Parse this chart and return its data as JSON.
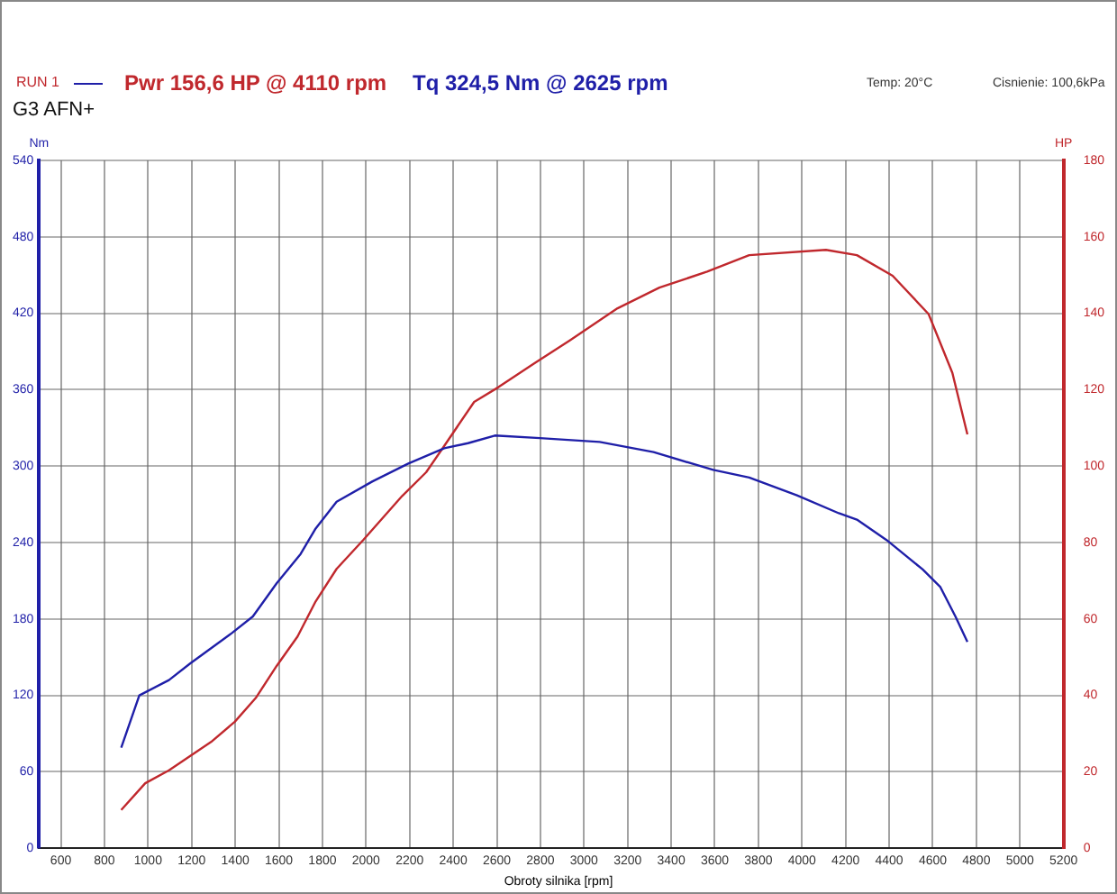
{
  "chart_data": {
    "type": "line",
    "title": "G3 AFN+",
    "annotations": [
      "RUN 1",
      "Pwr 156,6 HP @ 4110 rpm",
      "Tq 324,5 Nm @ 2625 rpm",
      "Temp: 20°C",
      "Cisnienie: 100,6kPa"
    ],
    "xlabel": "Obroty silnika [rpm]",
    "ylabel": "Nm",
    "y2label": "HP",
    "series": [
      {
        "color": "#1f1fa8",
        "x": [
          877,
          960,
          1096,
          1193,
          1385,
          1481,
          1590,
          1700,
          1769,
          1865,
          2030,
          2194,
          2359,
          2468,
          2591,
          2798,
          3072,
          3319,
          3593,
          3758,
          3977,
          4169,
          4252,
          4388,
          4553,
          4635,
          4704,
          4759
        ],
        "values": [
          79,
          120,
          132,
          145,
          169,
          182,
          208,
          231,
          251,
          272,
          288,
          302,
          314,
          318,
          324,
          322,
          319,
          311,
          297,
          291,
          277,
          263,
          258,
          242,
          219,
          205,
          182,
          162
        ]
      },
      {
        "color": "#c0282d",
        "axis": "y2",
        "x": [
          877,
          987,
          1096,
          1289,
          1398,
          1494,
          1590,
          1686,
          1769,
          1865,
          1988,
          2166,
          2276,
          2359,
          2496,
          2606,
          2770,
          2935,
          3154,
          3346,
          3565,
          3758,
          4110,
          4252,
          4416,
          4581,
          4690,
          4759
        ],
        "values": [
          10,
          17,
          20.4,
          27.8,
          33.1,
          39.3,
          47.7,
          55.4,
          64.6,
          73.1,
          80.7,
          92.2,
          98.4,
          105.3,
          116.8,
          120.6,
          126.8,
          132.9,
          141.3,
          146.7,
          150.9,
          155.2,
          156.6,
          155.2,
          149.8,
          139.8,
          124.4,
          108.3
        ]
      }
    ],
    "xlim": [
      500,
      5200
    ],
    "xticks": [
      600,
      800,
      1000,
      1200,
      1400,
      1600,
      1800,
      2000,
      2200,
      2400,
      2600,
      2800,
      3000,
      3200,
      3400,
      3600,
      3800,
      4000,
      4200,
      4400,
      4600,
      4800,
      5000,
      5200
    ],
    "ylim": [
      0,
      540
    ],
    "yticks": [
      0,
      60,
      120,
      180,
      240,
      300,
      360,
      420,
      480,
      540
    ],
    "y2lim": [
      0,
      180
    ],
    "y2ticks": [
      0,
      20,
      40,
      60,
      80,
      100,
      120,
      140,
      160,
      180
    ],
    "grid": true,
    "legend": false,
    "marker": "none",
    "line_style": "solid"
  }
}
